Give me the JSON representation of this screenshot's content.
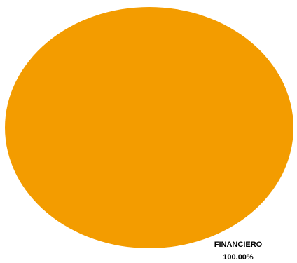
{
  "chart_data": {
    "type": "pie",
    "slices": [
      {
        "label": "FINANCIERO",
        "value": 100.0,
        "percent_label": "100.00%",
        "color": "#F39C00"
      }
    ],
    "legend": "none",
    "data_labels": "category-and-percent"
  }
}
